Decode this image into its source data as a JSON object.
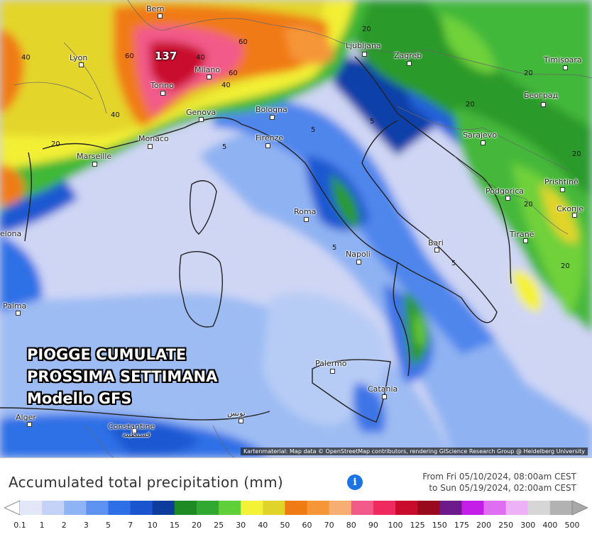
{
  "map": {
    "overlay_lines": [
      "PIOGGE CUMULATE",
      "PROSSIMA SETTIMANA",
      "Modello GFS"
    ],
    "attribution": "Kartenmaterial: Map data © OpenStreetMap contributors, rendering GIScience Research Group @ Heidelberg University",
    "max_value": "137",
    "cities": [
      "Bern",
      "Lyon",
      "Torino",
      "Milano",
      "Genova",
      "Monaco",
      "Marseille",
      "Bologna",
      "Firenze",
      "Roma",
      "Napoli",
      "Bari",
      "Palermo",
      "Catania",
      "Ljubljana",
      "Zagreb",
      "Timișoara",
      "Београд",
      "Sarajevo",
      "Podgorica",
      "Prishtinë",
      "Скопје",
      "Tiranë",
      "Palma",
      "elona",
      "Alger",
      "Constantine",
      "قسنطينة",
      "تونس"
    ],
    "contour_labels": [
      "40",
      "60",
      "40",
      "20",
      "60",
      "40",
      "60",
      "40",
      "20",
      "5",
      "5",
      "5",
      "5",
      "20",
      "20",
      "20",
      "20",
      "5",
      "20"
    ]
  },
  "legend": {
    "title": "Accumulated total precipitation (mm)",
    "info_icon": "info-icon",
    "period_from": "From Fri 05/10/2024, 08:00am CEST",
    "period_to": "to Sun 05/19/2024, 02:00am CEST",
    "scale_labels": [
      "0.1",
      "1",
      "2",
      "3",
      "5",
      "7",
      "10",
      "15",
      "20",
      "25",
      "30",
      "40",
      "50",
      "60",
      "70",
      "80",
      "90",
      "100",
      "125",
      "150",
      "175",
      "200",
      "250",
      "300",
      "400",
      "500"
    ],
    "scale_colors": [
      "#e3e6f7",
      "#c4d2f7",
      "#8fb4f5",
      "#5d92f0",
      "#2f6fe6",
      "#1a55cf",
      "#0d3d9c",
      "#1e8a24",
      "#31a830",
      "#5fd03a",
      "#f4f236",
      "#e0d32a",
      "#f07a13",
      "#f59638",
      "#f7ae73",
      "#f25a8a",
      "#ee2a5e",
      "#c90c2e",
      "#9a0a1e",
      "#6c1a8a",
      "#c31ee8",
      "#df6ef2",
      "#eeb1f5",
      "#d6d6d6",
      "#b2b2b2"
    ],
    "arrow_left_color": "#ffffff",
    "arrow_right_color": "#a8a8a8"
  }
}
